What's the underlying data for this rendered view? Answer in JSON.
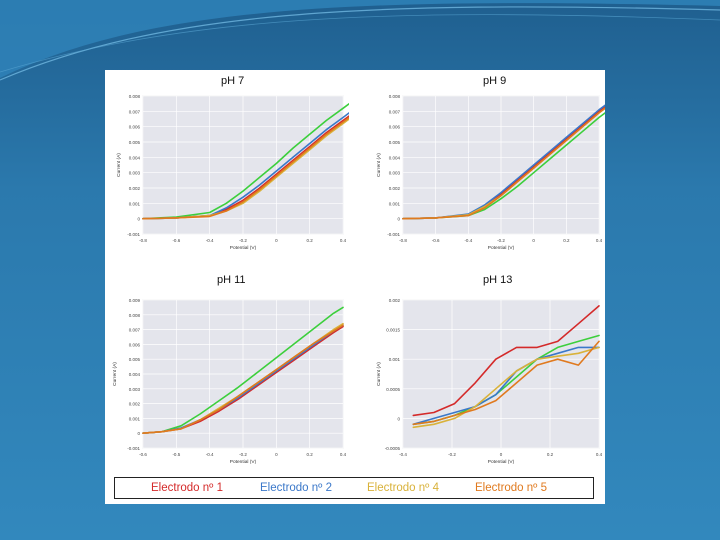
{
  "panels": [
    {
      "title": "pH 7",
      "x_label": "Potential (V)",
      "y_label": "Current (A)",
      "x_ticks": [
        "-0.8",
        "-0.6",
        "-0.4",
        "-0.2",
        "0",
        "0.2",
        "0.4"
      ],
      "y_ticks": [
        "0.008",
        "0.007",
        "0.006",
        "0.005",
        "0.004",
        "0.003",
        "0.002",
        "0.001",
        "0",
        "-0.001"
      ]
    },
    {
      "title": "pH 9",
      "x_label": "Potential (V)",
      "y_label": "Current (A)",
      "x_ticks": [
        "-0.8",
        "-0.6",
        "-0.4",
        "-0.2",
        "0",
        "0.2",
        "0.4"
      ],
      "y_ticks": [
        "0.008",
        "0.007",
        "0.006",
        "0.005",
        "0.004",
        "0.003",
        "0.002",
        "0.001",
        "0",
        "-0.001"
      ]
    },
    {
      "title": "pH 11",
      "x_label": "Potential (V)",
      "y_label": "Current (A)",
      "x_ticks": [
        "-0.6",
        "-0.5",
        "-0.4",
        "-0.2",
        "0",
        "0.2",
        "0.4"
      ],
      "y_ticks": [
        "0.009",
        "0.008",
        "0.007",
        "0.006",
        "0.005",
        "0.004",
        "0.003",
        "0.002",
        "0.001",
        "0",
        "-0.001"
      ]
    },
    {
      "title": "pH 13",
      "x_label": "Potential (V)",
      "y_label": "Current (A)",
      "x_ticks": [
        "-0.4",
        "-0.2",
        "0",
        "0.2",
        "0.4"
      ],
      "y_ticks": [
        "0.002",
        "0.0015",
        "0.001",
        "0.0005",
        "0",
        "-0.0005"
      ]
    }
  ],
  "legend": [
    {
      "label": "Electrodo nº 1",
      "color": "#d42a2a"
    },
    {
      "label": "Electrodo nº 2",
      "color": "#3b78c9"
    },
    {
      "label": "Electrodo nº 4",
      "color": "#d9b23a"
    },
    {
      "label": "Electrodo nº 5",
      "color": "#e07a1f"
    }
  ],
  "chart_data": [
    {
      "type": "line",
      "title": "pH 7",
      "xlabel": "Potential (V)",
      "ylabel": "Current (A)",
      "xlim": [
        -0.8,
        0.4
      ],
      "ylim": [
        -0.001,
        0.008
      ],
      "grid": true,
      "series": [
        {
          "name": "Electrodo nº 1",
          "color": "#d42a2a",
          "x": [
            -0.8,
            -0.6,
            -0.4,
            -0.3,
            -0.2,
            -0.1,
            0,
            0.1,
            0.2,
            0.3,
            0.4,
            0.45
          ],
          "y": [
            0,
            5e-05,
            0.0002,
            0.0006,
            0.0012,
            0.002,
            0.0029,
            0.0038,
            0.0047,
            0.0056,
            0.0064,
            0.0068
          ]
        },
        {
          "name": "Electrodo nº 2",
          "color": "#3b78c9",
          "x": [
            -0.8,
            -0.6,
            -0.4,
            -0.3,
            -0.2,
            -0.1,
            0,
            0.1,
            0.2,
            0.3,
            0.4,
            0.45
          ],
          "y": [
            0,
            5e-05,
            0.0002,
            0.0007,
            0.0014,
            0.0022,
            0.0031,
            0.004,
            0.0049,
            0.0058,
            0.0066,
            0.007
          ]
        },
        {
          "name": "Electrodo nº 4",
          "color": "#d9b23a",
          "x": [
            -0.8,
            -0.6,
            -0.4,
            -0.3,
            -0.2,
            -0.1,
            0,
            0.1,
            0.2,
            0.3,
            0.4,
            0.45
          ],
          "y": [
            0,
            5e-05,
            0.0002,
            0.0005,
            0.001,
            0.0018,
            0.0027,
            0.0036,
            0.0045,
            0.0054,
            0.0062,
            0.0066
          ]
        },
        {
          "name": "Electrodo nº 5",
          "color": "#e07a1f",
          "x": [
            -0.8,
            -0.6,
            -0.4,
            -0.3,
            -0.2,
            -0.1,
            0,
            0.1,
            0.2,
            0.3,
            0.4,
            0.45
          ],
          "y": [
            0,
            5e-05,
            0.00015,
            0.0005,
            0.0011,
            0.0019,
            0.0028,
            0.0037,
            0.0046,
            0.0055,
            0.0063,
            0.0067
          ]
        },
        {
          "name": "",
          "color": "#3ccf3c",
          "x": [
            -0.8,
            -0.6,
            -0.4,
            -0.3,
            -0.2,
            -0.1,
            0,
            0.1,
            0.2,
            0.3,
            0.4,
            0.45
          ],
          "y": [
            0,
            0.0001,
            0.0004,
            0.001,
            0.0018,
            0.0027,
            0.0036,
            0.0046,
            0.0055,
            0.0064,
            0.0072,
            0.0076
          ]
        }
      ]
    },
    {
      "type": "line",
      "title": "pH 9",
      "xlabel": "Potential (V)",
      "ylabel": "Current (A)",
      "xlim": [
        -0.8,
        0.4
      ],
      "ylim": [
        -0.001,
        0.008
      ],
      "grid": true,
      "series": [
        {
          "name": "Electrodo nº 1",
          "color": "#d42a2a",
          "x": [
            -0.8,
            -0.6,
            -0.4,
            -0.3,
            -0.2,
            -0.1,
            0,
            0.1,
            0.2,
            0.3,
            0.4,
            0.45
          ],
          "y": [
            0,
            5e-05,
            0.00025,
            0.0008,
            0.0016,
            0.0025,
            0.0034,
            0.0043,
            0.0052,
            0.0061,
            0.007,
            0.0074
          ]
        },
        {
          "name": "Electrodo nº 2",
          "color": "#3b78c9",
          "x": [
            -0.8,
            -0.6,
            -0.4,
            -0.3,
            -0.2,
            -0.1,
            0,
            0.1,
            0.2,
            0.3,
            0.4,
            0.45
          ],
          "y": [
            0,
            5e-05,
            0.0003,
            0.0009,
            0.0017,
            0.0026,
            0.0035,
            0.0044,
            0.0053,
            0.0062,
            0.0071,
            0.0075
          ]
        },
        {
          "name": "Electrodo nº 4",
          "color": "#d9b23a",
          "x": [
            -0.8,
            -0.6,
            -0.4,
            -0.3,
            -0.2,
            -0.1,
            0,
            0.1,
            0.2,
            0.3,
            0.4,
            0.45
          ],
          "y": [
            0,
            5e-05,
            0.00025,
            0.0008,
            0.0015,
            0.0024,
            0.0033,
            0.0042,
            0.0051,
            0.006,
            0.0069,
            0.0073
          ]
        },
        {
          "name": "Electrodo nº 5",
          "color": "#e07a1f",
          "x": [
            -0.8,
            -0.6,
            -0.4,
            -0.3,
            -0.2,
            -0.1,
            0,
            0.1,
            0.2,
            0.3,
            0.4,
            0.45
          ],
          "y": [
            0,
            5e-05,
            0.0002,
            0.0007,
            0.0015,
            0.0024,
            0.0033,
            0.0042,
            0.0051,
            0.006,
            0.0069,
            0.0073
          ]
        },
        {
          "name": "",
          "color": "#3ccf3c",
          "x": [
            -0.8,
            -0.6,
            -0.4,
            -0.3,
            -0.2,
            -0.1,
            0,
            0.1,
            0.2,
            0.3,
            0.4,
            0.45
          ],
          "y": [
            0,
            5e-05,
            0.0002,
            0.0006,
            0.0013,
            0.0021,
            0.003,
            0.0039,
            0.0048,
            0.0057,
            0.0066,
            0.007
          ]
        }
      ]
    },
    {
      "type": "line",
      "title": "pH 11",
      "xlabel": "Potential (V)",
      "ylabel": "Current (A)",
      "xlim": [
        -0.6,
        0.45
      ],
      "ylim": [
        -0.001,
        0.009
      ],
      "grid": true,
      "series": [
        {
          "name": "Electrodo nº 1",
          "color": "#d42a2a",
          "x": [
            -0.6,
            -0.5,
            -0.4,
            -0.3,
            -0.2,
            -0.1,
            0,
            0.1,
            0.2,
            0.3,
            0.4,
            0.45
          ],
          "y": [
            0,
            0.0001,
            0.0003,
            0.0008,
            0.0015,
            0.0023,
            0.0032,
            0.0041,
            0.005,
            0.0059,
            0.0068,
            0.0072
          ]
        },
        {
          "name": "Electrodo nº 2",
          "color": "#3b78c9",
          "x": [
            -0.6,
            -0.5,
            -0.4,
            -0.3,
            -0.2,
            -0.1,
            0,
            0.1,
            0.2,
            0.3,
            0.4,
            0.45
          ],
          "y": [
            0,
            0.0001,
            0.00035,
            0.0009,
            0.0016,
            0.0024,
            0.0033,
            0.0042,
            0.0051,
            0.006,
            0.0069,
            0.0073
          ]
        },
        {
          "name": "Electrodo nº 4",
          "color": "#d9b23a",
          "x": [
            -0.6,
            -0.5,
            -0.4,
            -0.3,
            -0.2,
            -0.1,
            0,
            0.1,
            0.2,
            0.3,
            0.4,
            0.45
          ],
          "y": [
            0,
            0.0001,
            0.0003,
            0.0009,
            0.0017,
            0.0025,
            0.0034,
            0.0043,
            0.0052,
            0.0061,
            0.007,
            0.0074
          ]
        },
        {
          "name": "Electrodo nº 5",
          "color": "#e07a1f",
          "x": [
            -0.6,
            -0.5,
            -0.4,
            -0.3,
            -0.2,
            -0.1,
            0,
            0.1,
            0.2,
            0.3,
            0.4,
            0.45
          ],
          "y": [
            0,
            0.0001,
            0.0003,
            0.0009,
            0.0016,
            0.0025,
            0.0034,
            0.0043,
            0.0052,
            0.0061,
            0.0069,
            0.0073
          ]
        },
        {
          "name": "",
          "color": "#3ccf3c",
          "x": [
            -0.6,
            -0.5,
            -0.4,
            -0.3,
            -0.2,
            -0.1,
            0,
            0.1,
            0.2,
            0.3,
            0.4,
            0.45
          ],
          "y": [
            0,
            0.0001,
            0.0005,
            0.0013,
            0.0022,
            0.0031,
            0.0041,
            0.0051,
            0.0061,
            0.0071,
            0.0081,
            0.0085
          ]
        }
      ]
    },
    {
      "type": "line",
      "title": "pH 13",
      "xlabel": "Potential (V)",
      "ylabel": "Current (A)",
      "xlim": [
        -0.45,
        0.5
      ],
      "ylim": [
        -0.0005,
        0.002
      ],
      "grid": true,
      "series": [
        {
          "name": "Electrodo nº 1",
          "color": "#d42a2a",
          "x": [
            -0.4,
            -0.3,
            -0.2,
            -0.1,
            0,
            0.1,
            0.2,
            0.3,
            0.4,
            0.5
          ],
          "y": [
            5e-05,
            0.0001,
            0.00025,
            0.0006,
            0.001,
            0.0012,
            0.0012,
            0.0013,
            0.0016,
            0.0019
          ]
        },
        {
          "name": "Electrodo nº 2",
          "color": "#3b78c9",
          "x": [
            -0.4,
            -0.3,
            -0.2,
            -0.1,
            0,
            0.1,
            0.2,
            0.3,
            0.4,
            0.5
          ],
          "y": [
            -0.0001,
            0,
            0.0001,
            0.0002,
            0.0004,
            0.0008,
            0.001,
            0.0011,
            0.0012,
            0.0012
          ]
        },
        {
          "name": "Electrodo nº 4",
          "color": "#d9b23a",
          "x": [
            -0.4,
            -0.3,
            -0.2,
            -0.1,
            0,
            0.1,
            0.2,
            0.3,
            0.4,
            0.5
          ],
          "y": [
            -0.00015,
            -0.0001,
            0,
            0.0002,
            0.0005,
            0.0008,
            0.001,
            0.00105,
            0.0011,
            0.0012
          ]
        },
        {
          "name": "Electrodo nº 5",
          "color": "#e07a1f",
          "x": [
            -0.4,
            -0.3,
            -0.2,
            -0.1,
            0,
            0.1,
            0.2,
            0.3,
            0.4,
            0.5
          ],
          "y": [
            -0.0001,
            -5e-05,
            5e-05,
            0.00015,
            0.0003,
            0.0006,
            0.0009,
            0.001,
            0.0009,
            0.0013
          ]
        },
        {
          "name": "",
          "color": "#3ccf3c",
          "x": [
            -0.4,
            -0.3,
            -0.2,
            -0.1,
            0,
            0.1,
            0.2,
            0.3,
            0.4,
            0.5
          ],
          "y": [
            -0.0001,
            -5e-05,
            5e-05,
            0.0002,
            0.0004,
            0.0007,
            0.001,
            0.0012,
            0.0013,
            0.0014
          ]
        }
      ]
    }
  ]
}
